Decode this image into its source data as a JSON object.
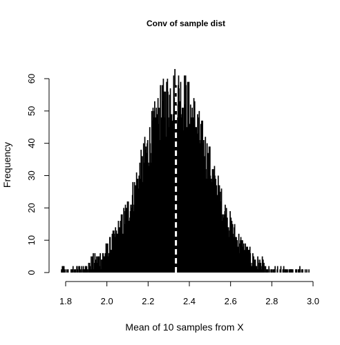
{
  "chart_data": {
    "type": "bar",
    "title": "Conv of sample dist",
    "xlabel": "Mean of 10 samples from X",
    "ylabel": "Frequency",
    "xlim": [
      1.8,
      3.0
    ],
    "ylim": [
      0,
      60
    ],
    "x_ticks": [
      "1.8",
      "2.0",
      "2.2",
      "2.4",
      "2.6",
      "2.8",
      "3.0"
    ],
    "y_ticks": [
      "0",
      "10",
      "20",
      "30",
      "40",
      "50",
      "60"
    ],
    "distribution": {
      "shape": "approximately normal",
      "center": 2.335,
      "spread_sd": 0.16,
      "peak_frequency": 60,
      "x_min": 1.78,
      "x_max": 2.98,
      "bin_width": 0.002
    },
    "mean_line": {
      "x": 2.335,
      "style": "dashed",
      "color": "#ffffff"
    },
    "colors": {
      "bars": "#000000",
      "background": "#ffffff"
    }
  }
}
